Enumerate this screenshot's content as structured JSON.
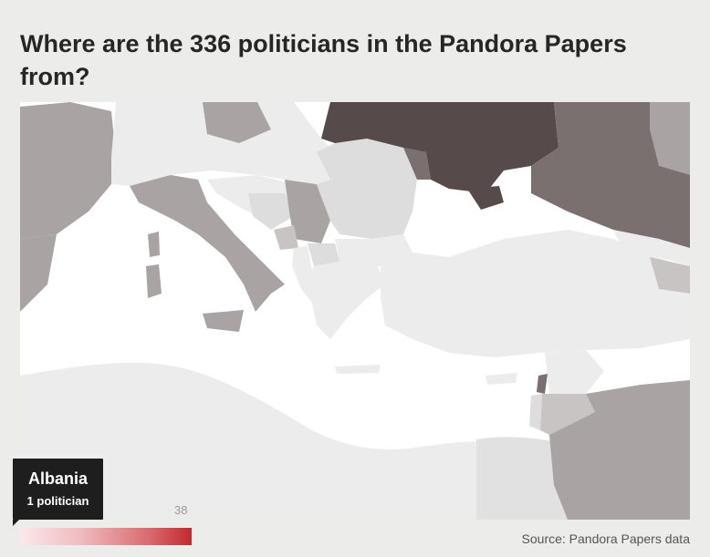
{
  "title": "Where are the 336 politicians in the Pandora Papers from?",
  "tooltip": {
    "country": "Albania",
    "count_text": "1 politician"
  },
  "legend": {
    "max_label": "38",
    "min_color": "#fbe9ea",
    "max_color": "#c0292e"
  },
  "source": "Source: Pandora Papers data",
  "colors": {
    "sea": "#ffffff",
    "no_data": "#ececec",
    "low": "#dedddd",
    "mid_low": "#c8c4c4",
    "mid": "#a9a3a3",
    "mid_high": "#7b7070",
    "high": "#574a4a"
  }
}
